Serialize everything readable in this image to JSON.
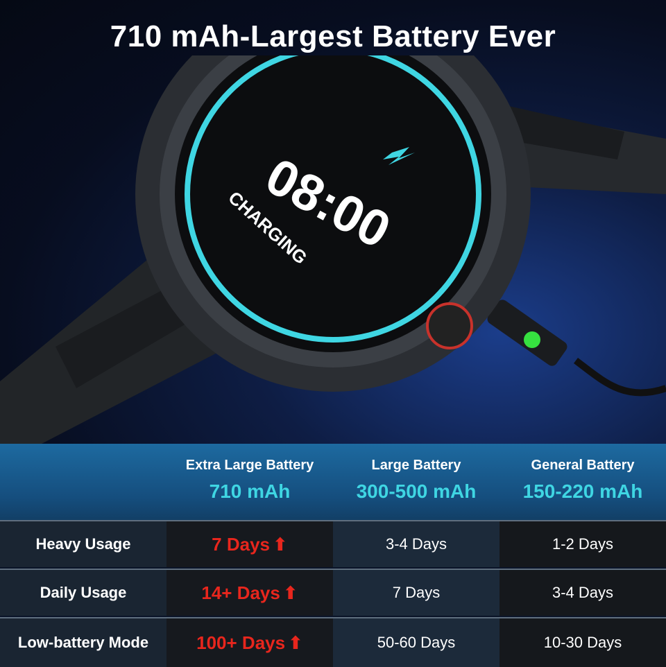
{
  "headline": "710 mAh-Largest Battery Ever",
  "watch_screen": {
    "time": "08:00",
    "status": "CHARGING",
    "icon": "lightning-icon"
  },
  "comparison": {
    "columns": [
      {
        "name": "Extra Large Battery",
        "capacity": "710 mAh"
      },
      {
        "name": "Large Battery",
        "capacity": "300-500 mAh"
      },
      {
        "name": "General Battery",
        "capacity": "150-220 mAh"
      }
    ],
    "rows": [
      {
        "label": "Heavy Usage",
        "values": [
          "7 Days",
          "3-4 Days",
          "1-2 Days"
        ]
      },
      {
        "label": "Daily Usage",
        "values": [
          "14+ Days",
          "7 Days",
          "3-4 Days"
        ]
      },
      {
        "label": "Low-battery Mode",
        "values": [
          "100+ Days",
          "50-60 Days",
          "10-30 Days"
        ]
      }
    ]
  },
  "colors": {
    "accent_cyan": "#3fd6e3",
    "highlight_red": "#e8261d",
    "header_blue": "#1d6aa0"
  }
}
